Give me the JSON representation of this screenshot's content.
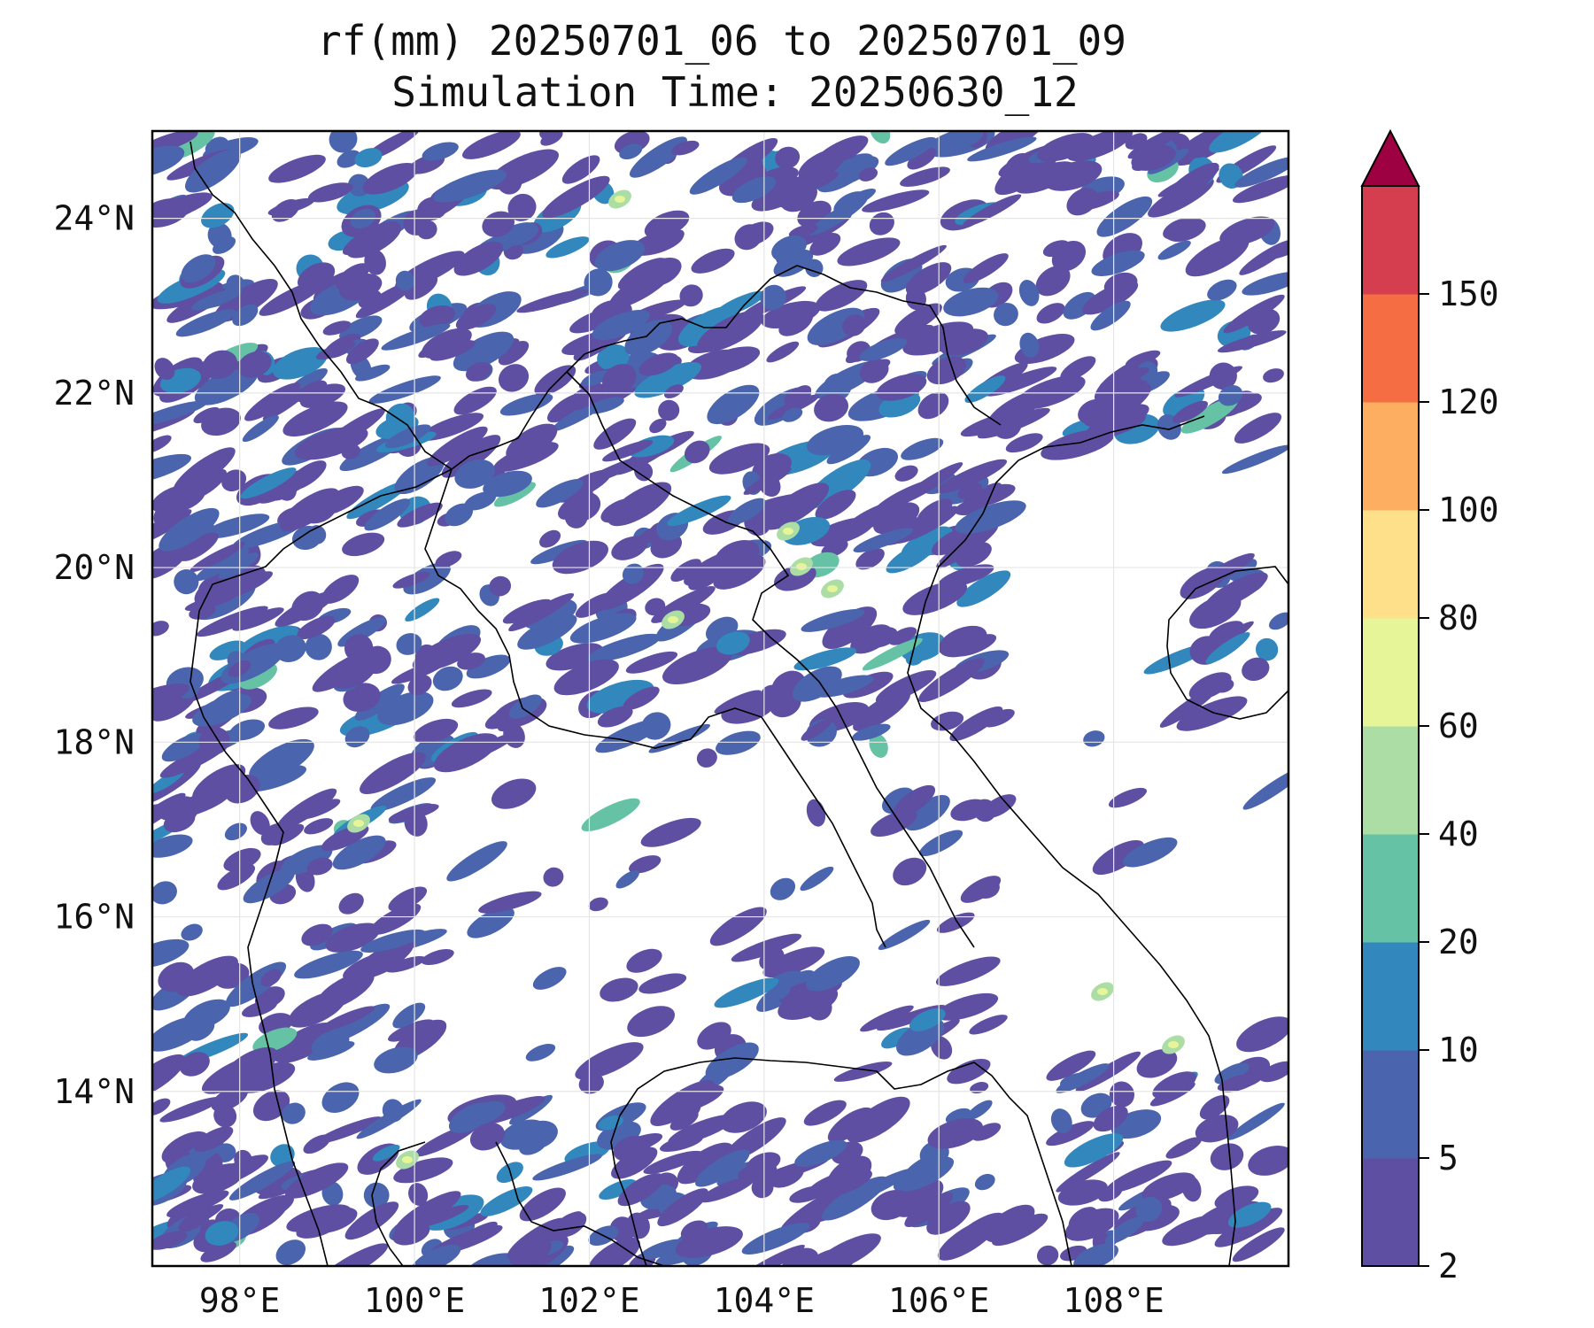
{
  "title": {
    "line1": "rf(mm) 20250701_06 to 20250701_09",
    "line2": "Simulation Time: 20250630_12"
  },
  "map": {
    "lon_range": [
      97.0,
      110.0
    ],
    "lat_range": [
      12.0,
      25.0
    ],
    "lon_ticks": [
      {
        "value": 98,
        "label": "98°E"
      },
      {
        "value": 100,
        "label": "100°E"
      },
      {
        "value": 102,
        "label": "102°E"
      },
      {
        "value": 104,
        "label": "104°E"
      },
      {
        "value": 106,
        "label": "106°E"
      },
      {
        "value": 108,
        "label": "108°E"
      }
    ],
    "lat_ticks": [
      {
        "value": 24,
        "label": "24°N"
      },
      {
        "value": 22,
        "label": "22°N"
      },
      {
        "value": 20,
        "label": "20°N"
      },
      {
        "value": 18,
        "label": "18°N"
      },
      {
        "value": 16,
        "label": "16°N"
      },
      {
        "value": 14,
        "label": "14°N"
      }
    ],
    "gridlines": true,
    "background_color": "#ffffff",
    "coastline_color": "#000000"
  },
  "colorbar": {
    "levels": [
      "2",
      "5",
      "10",
      "20",
      "40",
      "60",
      "80",
      "100",
      "120",
      "150"
    ],
    "colors": [
      "#5e4fa2",
      "#4a64ad",
      "#3288bd",
      "#66c2a5",
      "#abdda4",
      "#e6f598",
      "#fee08b",
      "#fdae61",
      "#f46d43",
      "#d53e4f"
    ],
    "extend_color": "#9e0142",
    "extend": "max",
    "orientation": "vertical"
  }
}
